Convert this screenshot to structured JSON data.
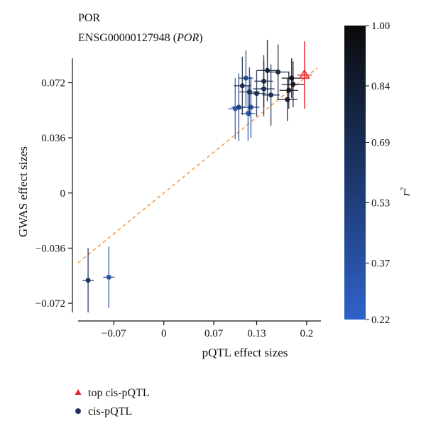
{
  "chart_data": {
    "type": "scatter",
    "title": "POR",
    "subtitle_prefix": "ENSG00000127948 (",
    "subtitle_gene": "POR",
    "subtitle_suffix": ")",
    "xlabel": "pQTL effect sizes",
    "ylabel": "GWAS effect sizes",
    "xlim": [
      -0.12,
      0.22
    ],
    "ylim": [
      -0.078,
      0.088
    ],
    "x_ticks": [
      -0.07,
      0,
      0.07,
      0.13,
      0.2
    ],
    "x_tick_labels": [
      "−0.07",
      "0",
      "0.07",
      "0.13",
      "0.2"
    ],
    "y_ticks": [
      0.072,
      0.036,
      0,
      -0.036,
      -0.072
    ],
    "y_tick_labels": [
      "0.072",
      "0.036",
      "0",
      "−0.036",
      "−0.072"
    ],
    "fit_line": {
      "slope": 0.38,
      "intercept": 0.0,
      "color": "#f2a04a"
    },
    "colorbar": {
      "label": "r",
      "label_sup": "2",
      "min": 0.22,
      "max": 1.0,
      "ticks": [
        1.0,
        0.84,
        0.69,
        0.53,
        0.37,
        0.22
      ],
      "tick_labels": [
        "1.00",
        "0.84",
        "0.69",
        "0.53",
        "0.37",
        "0.22"
      ],
      "color_low": "#2f62c8",
      "color_high": "#0a0a0a"
    },
    "points": [
      {
        "x": 0.197,
        "y": 0.077,
        "xerr": 0.01,
        "yerr": 0.022,
        "r2": 1.0,
        "top": true
      },
      {
        "x": 0.179,
        "y": 0.075,
        "xerr": 0.014,
        "yerr": 0.013,
        "r2": 0.95,
        "top": false
      },
      {
        "x": 0.181,
        "y": 0.071,
        "xerr": 0.016,
        "yerr": 0.015,
        "r2": 0.92,
        "top": false
      },
      {
        "x": 0.175,
        "y": 0.067,
        "xerr": 0.013,
        "yerr": 0.012,
        "r2": 0.9,
        "top": false
      },
      {
        "x": 0.173,
        "y": 0.061,
        "xerr": 0.014,
        "yerr": 0.014,
        "r2": 0.88,
        "top": false
      },
      {
        "x": 0.145,
        "y": 0.08,
        "xerr": 0.015,
        "yerr": 0.02,
        "r2": 0.85,
        "top": false
      },
      {
        "x": 0.16,
        "y": 0.079,
        "xerr": 0.016,
        "yerr": 0.018,
        "r2": 0.8,
        "top": false
      },
      {
        "x": 0.14,
        "y": 0.073,
        "xerr": 0.013,
        "yerr": 0.017,
        "r2": 0.78,
        "top": false
      },
      {
        "x": 0.12,
        "y": 0.066,
        "xerr": 0.014,
        "yerr": 0.016,
        "r2": 0.7,
        "top": false
      },
      {
        "x": 0.11,
        "y": 0.07,
        "xerr": 0.012,
        "yerr": 0.019,
        "r2": 0.75,
        "top": false
      },
      {
        "x": 0.13,
        "y": 0.065,
        "xerr": 0.013,
        "yerr": 0.015,
        "r2": 0.72,
        "top": false
      },
      {
        "x": 0.15,
        "y": 0.064,
        "xerr": 0.012,
        "yerr": 0.02,
        "r2": 0.73,
        "top": false
      },
      {
        "x": 0.14,
        "y": 0.068,
        "xerr": 0.015,
        "yerr": 0.018,
        "r2": 0.68,
        "top": false
      },
      {
        "x": 0.115,
        "y": 0.075,
        "xerr": 0.01,
        "yerr": 0.018,
        "r2": 0.5,
        "top": false
      },
      {
        "x": 0.105,
        "y": 0.056,
        "xerr": 0.01,
        "yerr": 0.022,
        "r2": 0.55,
        "top": false
      },
      {
        "x": 0.122,
        "y": 0.056,
        "xerr": 0.012,
        "yerr": 0.02,
        "r2": 0.45,
        "top": false
      },
      {
        "x": 0.118,
        "y": 0.052,
        "xerr": 0.01,
        "yerr": 0.018,
        "r2": 0.35,
        "top": false
      },
      {
        "x": 0.1,
        "y": 0.055,
        "xerr": 0.01,
        "yerr": 0.02,
        "r2": 0.3,
        "top": false
      },
      {
        "x": -0.106,
        "y": -0.057,
        "xerr": 0.008,
        "yerr": 0.021,
        "r2": 0.7,
        "top": false
      },
      {
        "x": -0.077,
        "y": -0.055,
        "xerr": 0.008,
        "yerr": 0.02,
        "r2": 0.4,
        "top": false
      }
    ],
    "legend": {
      "placement": "bottom-left",
      "items": [
        {
          "label": "top cis-pQTL",
          "marker": "triangle",
          "color": "#e8222a"
        },
        {
          "label": "cis-pQTL",
          "marker": "circle",
          "color": "#24305f"
        }
      ]
    }
  }
}
